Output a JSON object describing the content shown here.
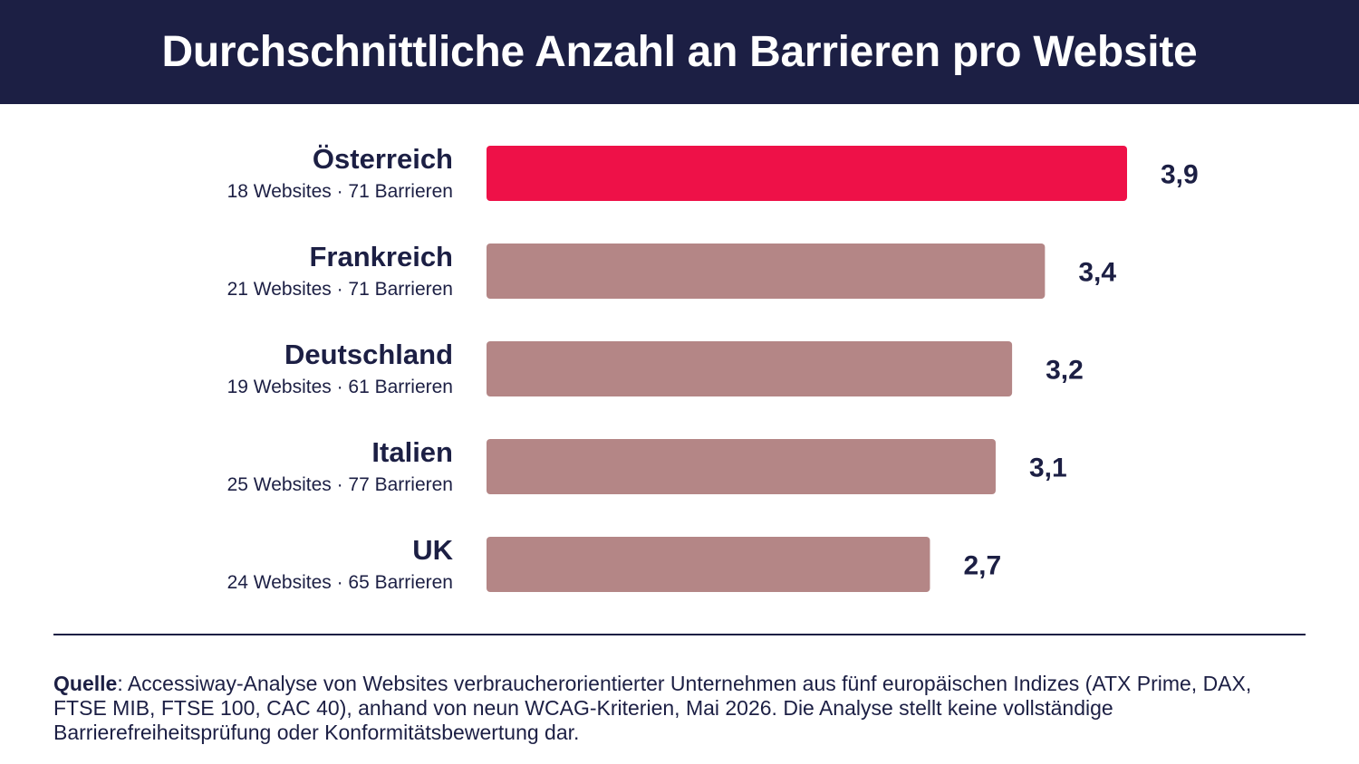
{
  "title": "Durchschnittliche Anzahl an Barrieren pro Website",
  "colors": {
    "header_bg": "#1c1f44",
    "highlight_bar": "#ee1148",
    "default_bar": "#b48686",
    "text": "#1c1f44"
  },
  "chart_data": {
    "type": "bar",
    "orientation": "horizontal",
    "title": "",
    "xlabel": "",
    "ylabel": "",
    "xlim": [
      0,
      3.9
    ],
    "grid": false,
    "categories": [
      "Österreich",
      "Frankreich",
      "Deutschland",
      "Italien",
      "UK"
    ],
    "subtitles": [
      "18 Websites · 71 Barrieren",
      "21 Websites · 71 Barrieren",
      "19 Websites · 61 Barrieren",
      "25 Websites · 77 Barrieren",
      "24 Websites · 65 Barrieren"
    ],
    "values": [
      3.9,
      3.4,
      3.2,
      3.1,
      2.7
    ],
    "value_labels": [
      "3,9",
      "3,4",
      "3,2",
      "3,1",
      "2,7"
    ],
    "highlight": [
      true,
      false,
      false,
      false,
      false
    ]
  },
  "source": {
    "label": "Quelle",
    "text": ": Accessiway-Analyse von Websites verbraucherorientierter Unternehmen aus fünf europäischen Indizes (ATX Prime, DAX, FTSE MIB, FTSE 100, CAC 40), anhand von neun WCAG-Kriterien, Mai 2026. Die Analyse stellt keine vollständige Barrierefreiheitsprüfung oder Konformitätsbewertung dar."
  }
}
